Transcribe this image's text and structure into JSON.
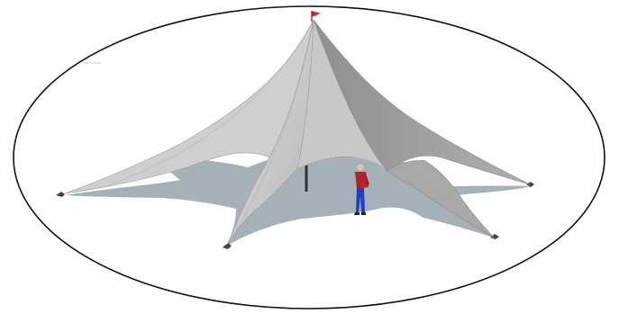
{
  "illustration": {
    "subject": "tent-with-person",
    "colors": {
      "background": "#ffffff",
      "frame": "#111111",
      "canopy_light": "#d4d4d4",
      "canopy_dark": "#8c8c8c",
      "shadow": "#a5b1b8",
      "flag": "#e0201c",
      "pole": "#333333",
      "person_shirt": "#b3242a",
      "person_pants": "#1e3fbf",
      "person_skin": "#e8c6a0"
    }
  }
}
